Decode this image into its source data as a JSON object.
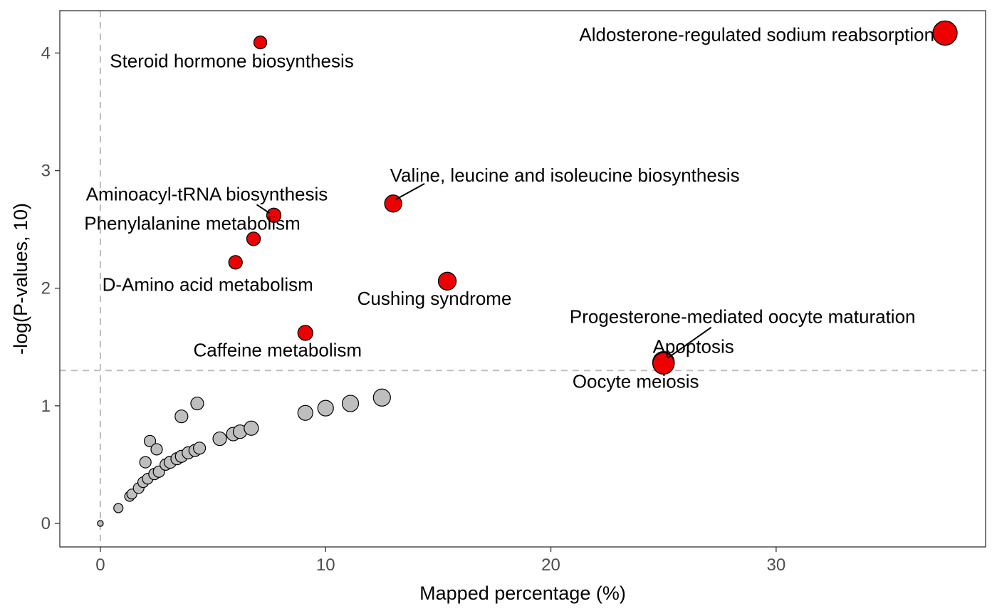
{
  "chart_data": {
    "type": "scatter",
    "title": "",
    "xlabel": "Mapped percentage (%)",
    "ylabel": "-log(P-values, 10)",
    "xlim": [
      -1.8,
      39.3
    ],
    "ylim": [
      -0.2,
      4.36
    ],
    "x_ticks": [
      0,
      10,
      20,
      30
    ],
    "y_ticks": [
      0,
      1,
      2,
      3,
      4
    ],
    "grid": false,
    "legend": "none",
    "thresholds": {
      "x": 0,
      "y": 1.3
    },
    "colors": {
      "significant": "#ee0000",
      "non_significant": "#bebebe",
      "outline": "#000000",
      "threshold_line": "#bebebe",
      "panel_border": "#333333",
      "tick_text": "#4d4d4d"
    },
    "labeled_points": [
      {
        "label": "Aldosterone-regulated sodium reabsorption",
        "x": 37.5,
        "y": 4.17,
        "size": 34
      },
      {
        "label": "Steroid hormone biosynthesis",
        "x": 7.1,
        "y": 4.09,
        "size": 18
      },
      {
        "label": "Valine, leucine and isoleucine biosynthesis",
        "x": 13.0,
        "y": 2.72,
        "size": 24
      },
      {
        "label": "Aminoacyl-tRNA biosynthesis",
        "x": 7.7,
        "y": 2.62,
        "size": 20
      },
      {
        "label": "Phenylalanine metabolism",
        "x": 6.8,
        "y": 2.42,
        "size": 19
      },
      {
        "label": "D-Amino acid metabolism",
        "x": 6.0,
        "y": 2.22,
        "size": 19
      },
      {
        "label": "Cushing syndrome",
        "x": 15.4,
        "y": 2.06,
        "size": 25
      },
      {
        "label": "Caffeine metabolism",
        "x": 9.1,
        "y": 1.62,
        "size": 21
      },
      {
        "label": "Progesterone-mediated oocyte maturation",
        "x": 25.0,
        "y": 1.37,
        "size": 30
      },
      {
        "label": "Apoptosis",
        "x": 25.0,
        "y": 1.37,
        "size": 30
      },
      {
        "label": "Oocyte meiosis",
        "x": 25.0,
        "y": 1.36,
        "size": 30
      }
    ],
    "other_points": [
      {
        "x": 0.0,
        "y": 0.0,
        "size": 8
      },
      {
        "x": 0.0,
        "y": 0.0,
        "size": 8
      },
      {
        "x": 0.8,
        "y": 0.13,
        "size": 13
      },
      {
        "x": 1.3,
        "y": 0.23,
        "size": 14
      },
      {
        "x": 1.4,
        "y": 0.25,
        "size": 14
      },
      {
        "x": 1.7,
        "y": 0.3,
        "size": 15
      },
      {
        "x": 1.9,
        "y": 0.35,
        "size": 15
      },
      {
        "x": 2.0,
        "y": 0.52,
        "size": 16
      },
      {
        "x": 2.1,
        "y": 0.38,
        "size": 15
      },
      {
        "x": 2.2,
        "y": 0.7,
        "size": 16
      },
      {
        "x": 2.4,
        "y": 0.42,
        "size": 16
      },
      {
        "x": 2.5,
        "y": 0.63,
        "size": 16
      },
      {
        "x": 2.6,
        "y": 0.44,
        "size": 16
      },
      {
        "x": 2.9,
        "y": 0.5,
        "size": 16
      },
      {
        "x": 3.1,
        "y": 0.52,
        "size": 17
      },
      {
        "x": 3.4,
        "y": 0.55,
        "size": 17
      },
      {
        "x": 3.6,
        "y": 0.57,
        "size": 17
      },
      {
        "x": 3.6,
        "y": 0.91,
        "size": 18
      },
      {
        "x": 3.9,
        "y": 0.6,
        "size": 17
      },
      {
        "x": 4.2,
        "y": 0.62,
        "size": 17
      },
      {
        "x": 4.3,
        "y": 1.02,
        "size": 18
      },
      {
        "x": 4.4,
        "y": 0.64,
        "size": 17
      },
      {
        "x": 5.3,
        "y": 0.72,
        "size": 19
      },
      {
        "x": 5.9,
        "y": 0.76,
        "size": 19
      },
      {
        "x": 6.2,
        "y": 0.78,
        "size": 19
      },
      {
        "x": 6.7,
        "y": 0.81,
        "size": 20
      },
      {
        "x": 9.1,
        "y": 0.94,
        "size": 21
      },
      {
        "x": 10.0,
        "y": 0.98,
        "size": 22
      },
      {
        "x": 11.1,
        "y": 1.02,
        "size": 23
      },
      {
        "x": 12.5,
        "y": 1.07,
        "size": 24
      }
    ]
  }
}
